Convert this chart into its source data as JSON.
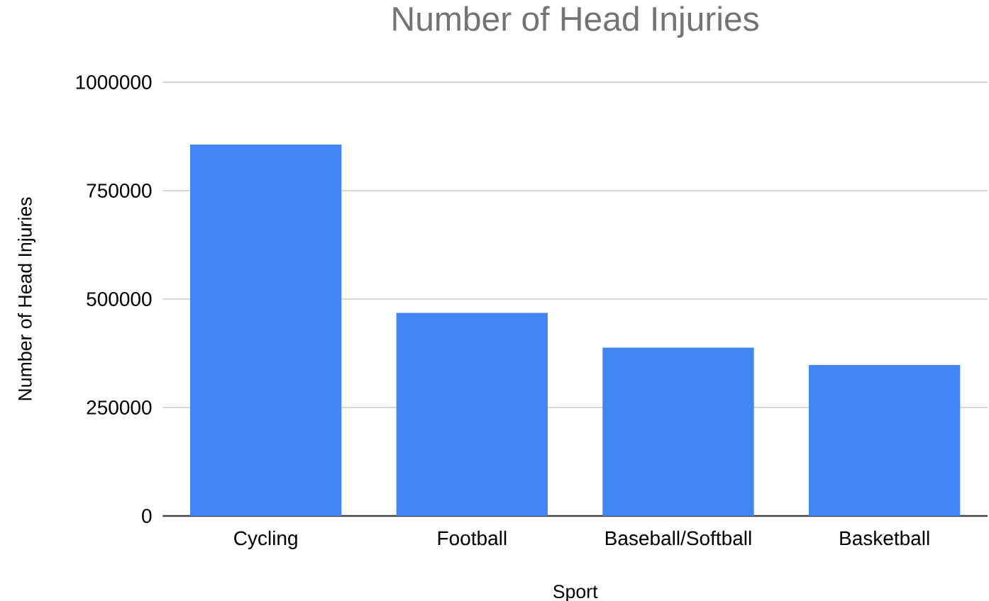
{
  "chart_data": {
    "type": "bar",
    "title": "Number of Head Injuries",
    "xlabel": "Sport",
    "ylabel": "Number of Head Injuries",
    "categories": [
      "Cycling",
      "Football",
      "Baseball/Softball",
      "Basketball"
    ],
    "values": [
      856000,
      468000,
      388000,
      348000
    ],
    "color": "#4285f4",
    "ylim": [
      0,
      1000000
    ],
    "yticks": [
      0,
      250000,
      500000,
      750000,
      1000000
    ],
    "grid": "y"
  }
}
